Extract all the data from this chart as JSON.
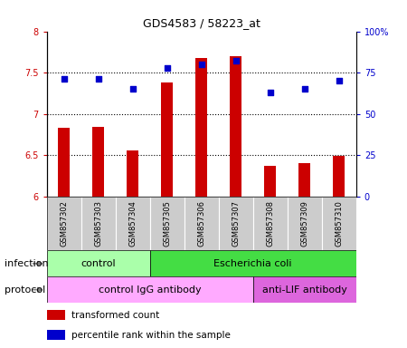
{
  "title": "GDS4583 / 58223_at",
  "samples": [
    "GSM857302",
    "GSM857303",
    "GSM857304",
    "GSM857305",
    "GSM857306",
    "GSM857307",
    "GSM857308",
    "GSM857309",
    "GSM857310"
  ],
  "bar_values": [
    6.83,
    6.84,
    6.56,
    7.38,
    7.68,
    7.7,
    6.37,
    6.4,
    6.49
  ],
  "dot_values": [
    71,
    71,
    65,
    78,
    80,
    82,
    63,
    65,
    70
  ],
  "bar_color": "#cc0000",
  "dot_color": "#0000cc",
  "ylim_left": [
    6,
    8
  ],
  "ylim_right": [
    0,
    100
  ],
  "yticks_left": [
    6,
    6.5,
    7,
    7.5,
    8
  ],
  "ytick_labels_left": [
    "6",
    "6.5",
    "7",
    "7.5",
    "8"
  ],
  "yticks_right": [
    0,
    25,
    50,
    75,
    100
  ],
  "ytick_labels_right": [
    "0",
    "25",
    "50",
    "75",
    "100%"
  ],
  "infection_control_color": "#aaffaa",
  "infection_ecoli_color": "#44dd44",
  "protocol_igg_color": "#ffaaff",
  "protocol_antilif_color": "#dd66dd",
  "infection_control_label": "control",
  "infection_ecoli_label": "Escherichia coli",
  "protocol_igg_label": "control IgG antibody",
  "protocol_antilif_label": "anti-LIF antibody",
  "infection_row_label": "infection",
  "protocol_row_label": "protocol",
  "legend_bar_label": "transformed count",
  "legend_dot_label": "percentile rank within the sample",
  "sample_bg_color": "#cccccc",
  "infection_control_n": 3,
  "infection_ecoli_n": 6,
  "protocol_igg_n": 6,
  "protocol_antilif_n": 3,
  "bar_width": 0.35
}
